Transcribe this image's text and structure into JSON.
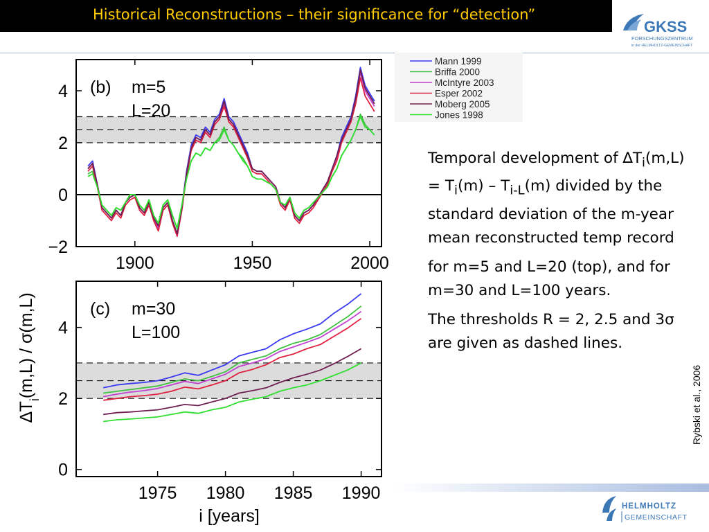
{
  "header": {
    "title": "Historical Reconstructions – their significance for “detection”"
  },
  "logos": {
    "gkss": {
      "name": "GKSS",
      "line1": "FORSCHUNGSZENTRUM",
      "line2": "in der HELMHOLTZ-GEMEINSCHAFT",
      "color": "#3d78b6"
    },
    "helmholtz": {
      "line1": "HELMHOLTZ",
      "line2": "GEMEINSCHAFT",
      "color": "#3d78b6"
    }
  },
  "description": {
    "p1_intro": "Temporal development of ",
    "p1_delta": "∆",
    "p1_T1": "T",
    "p1_sub_i1": "i",
    "p1_mid1": "(m,L) = T",
    "p1_sub_i2": "i",
    "p1_mid2": "(m) – T",
    "p1_sub_iL": "i-L",
    "p1_rest": "(m) divided by the standard deviation of the m-year mean reconstructed temp record",
    "p2": "for m=5 and L=20 (top), and for m=30 and L=100 years.",
    "p3": "The thresholds R = 2, 2.5 and 3σ are given as dashed lines."
  },
  "credit": "Rybski et al., 2006",
  "figure": {
    "ylabel_delta": "∆T",
    "ylabel_sub": "i",
    "ylabel_rest": "(m,L) / σ(m,L)",
    "xlabel": "i [years]"
  },
  "chart_data": [
    {
      "type": "line",
      "panel_label": "(b)",
      "params": [
        "m=5",
        "L=20"
      ],
      "xlim": [
        1875,
        2005
      ],
      "ylim": [
        -2.0,
        5.2
      ],
      "xticks": [
        1900,
        1950,
        2000
      ],
      "xtick_labels": [
        "1900",
        "1950",
        "2000"
      ],
      "yticks": [
        -2,
        0,
        2,
        4
      ],
      "ytick_labels": [
        "−2",
        "0",
        "2",
        "4"
      ],
      "thresholds": [
        2,
        2.5,
        3
      ],
      "zero_line": true,
      "base_x": [
        1880,
        1882,
        1884,
        1886,
        1888,
        1890,
        1892,
        1894,
        1896,
        1898,
        1900,
        1902,
        1904,
        1906,
        1908,
        1910,
        1912,
        1914,
        1916,
        1918,
        1920,
        1922,
        1924,
        1926,
        1928,
        1930,
        1932,
        1934,
        1936,
        1938,
        1940,
        1942,
        1944,
        1946,
        1948,
        1950,
        1952,
        1954,
        1956,
        1958,
        1960,
        1962,
        1964,
        1966,
        1968,
        1970,
        1972,
        1974,
        1976,
        1978,
        1980,
        1982,
        1984,
        1986,
        1988,
        1990,
        1992,
        1994,
        1996,
        1998,
        2000,
        2002
      ],
      "series": [
        {
          "name": "Mann 1999",
          "color": "#3a3af0",
          "values": [
            1.1,
            1.3,
            0.4,
            -0.5,
            -0.7,
            -0.9,
            -0.6,
            -0.8,
            -0.3,
            -0.1,
            0.0,
            -0.5,
            -0.7,
            -0.3,
            -0.9,
            -1.3,
            -0.5,
            -0.3,
            -1.0,
            -1.6,
            -0.5,
            0.9,
            1.9,
            2.3,
            2.2,
            2.6,
            2.4,
            2.9,
            3.1,
            3.7,
            3.0,
            2.8,
            2.4,
            2.0,
            1.6,
            1.0,
            0.9,
            0.9,
            0.7,
            0.5,
            0.3,
            -0.3,
            -0.5,
            -0.1,
            -0.8,
            -1.0,
            -0.7,
            -0.6,
            -0.4,
            -0.1,
            0.2,
            0.5,
            1.0,
            1.5,
            2.2,
            2.6,
            3.0,
            3.8,
            4.9,
            4.2,
            3.9,
            3.6
          ]
        },
        {
          "name": "Briffa 2000",
          "color": "#40c040",
          "values": [
            0.8,
            0.9,
            0.3,
            -0.4,
            -0.6,
            -0.8,
            -0.5,
            -0.6,
            -0.3,
            0.0,
            0.0,
            -0.4,
            -0.6,
            -0.2,
            -0.8,
            -1.1,
            -0.4,
            -0.2,
            -0.8,
            -1.3,
            -0.4,
            0.7,
            1.3,
            1.6,
            1.5,
            1.8,
            1.7,
            2.0,
            2.2,
            2.6,
            2.1,
            1.9,
            1.6,
            1.4,
            1.1,
            0.7,
            0.6,
            0.6,
            0.5,
            0.4,
            0.2,
            -0.3,
            -0.4,
            -0.1,
            -0.7,
            -0.9,
            -0.6,
            -0.5,
            -0.3,
            -0.1,
            0.1,
            0.3,
            0.7,
            1.0,
            1.5,
            1.8,
            2.1,
            2.5,
            3.1,
            2.7,
            2.5,
            2.3
          ]
        },
        {
          "name": "McIntyre 2003",
          "color": "#c040d0",
          "values": [
            1.0,
            1.2,
            0.4,
            -0.5,
            -0.7,
            -0.9,
            -0.6,
            -0.8,
            -0.3,
            -0.1,
            0.0,
            -0.5,
            -0.7,
            -0.3,
            -0.9,
            -1.3,
            -0.5,
            -0.3,
            -1.0,
            -1.5,
            -0.5,
            0.8,
            1.8,
            2.2,
            2.1,
            2.5,
            2.3,
            2.8,
            3.0,
            3.5,
            2.9,
            2.7,
            2.3,
            1.9,
            1.5,
            1.0,
            0.9,
            0.9,
            0.7,
            0.5,
            0.3,
            -0.3,
            -0.5,
            -0.1,
            -0.8,
            -1.0,
            -0.7,
            -0.6,
            -0.4,
            -0.1,
            0.2,
            0.5,
            1.0,
            1.4,
            2.1,
            2.5,
            2.9,
            3.7,
            4.7,
            4.0,
            3.7,
            3.4
          ]
        },
        {
          "name": "Esper 2002",
          "color": "#e02040",
          "values": [
            0.9,
            1.1,
            0.3,
            -0.6,
            -0.8,
            -1.0,
            -0.7,
            -0.9,
            -0.4,
            -0.2,
            -0.1,
            -0.6,
            -0.8,
            -0.4,
            -1.0,
            -1.4,
            -0.6,
            -0.4,
            -1.1,
            -1.6,
            -0.6,
            0.7,
            1.7,
            2.1,
            2.0,
            2.4,
            2.2,
            2.7,
            2.9,
            3.4,
            2.8,
            2.6,
            2.2,
            1.8,
            1.4,
            0.9,
            0.8,
            0.8,
            0.6,
            0.4,
            0.2,
            -0.4,
            -0.6,
            -0.2,
            -0.9,
            -1.1,
            -0.8,
            -0.7,
            -0.5,
            -0.2,
            0.1,
            0.4,
            0.9,
            1.3,
            2.0,
            2.4,
            2.8,
            3.5,
            4.5,
            3.8,
            3.5,
            3.2
          ]
        },
        {
          "name": "Moberg 2005",
          "color": "#702050",
          "values": [
            1.0,
            1.2,
            0.4,
            -0.5,
            -0.7,
            -0.9,
            -0.6,
            -0.8,
            -0.3,
            -0.1,
            0.0,
            -0.5,
            -0.7,
            -0.3,
            -0.9,
            -1.2,
            -0.5,
            -0.3,
            -1.0,
            -1.5,
            -0.5,
            0.8,
            1.8,
            2.2,
            2.1,
            2.5,
            2.3,
            2.8,
            3.0,
            3.6,
            2.9,
            2.7,
            2.3,
            1.9,
            1.5,
            1.0,
            0.9,
            0.9,
            0.7,
            0.5,
            0.3,
            -0.3,
            -0.5,
            -0.1,
            -0.8,
            -1.0,
            -0.7,
            -0.6,
            -0.4,
            -0.1,
            0.2,
            0.5,
            1.0,
            1.5,
            2.1,
            2.5,
            2.9,
            3.7,
            4.8,
            4.1,
            3.8,
            3.5
          ]
        },
        {
          "name": "Jones 1998",
          "color": "#30e030",
          "values": [
            0.7,
            0.8,
            0.3,
            -0.4,
            -0.6,
            -0.8,
            -0.5,
            -0.6,
            -0.3,
            0.0,
            0.0,
            -0.4,
            -0.6,
            -0.2,
            -0.8,
            -1.1,
            -0.4,
            -0.2,
            -0.8,
            -1.3,
            -0.4,
            0.6,
            1.3,
            1.6,
            1.5,
            1.8,
            1.7,
            2.0,
            2.1,
            2.5,
            2.1,
            1.9,
            1.6,
            1.3,
            1.1,
            0.7,
            0.6,
            0.6,
            0.5,
            0.4,
            0.2,
            -0.3,
            -0.4,
            -0.1,
            -0.7,
            -0.9,
            -0.6,
            -0.5,
            -0.3,
            -0.1,
            0.1,
            0.3,
            0.7,
            1.0,
            1.5,
            1.8,
            2.1,
            2.5,
            3.0,
            2.6,
            2.5,
            2.3
          ]
        }
      ]
    },
    {
      "type": "line",
      "panel_label": "(c)",
      "params": [
        "m=30",
        "L=100"
      ],
      "xlim": [
        1969,
        1991.5
      ],
      "ylim": [
        -0.2,
        5.3
      ],
      "xticks": [
        1975,
        1980,
        1985,
        1990
      ],
      "xtick_labels": [
        "1975",
        "1980",
        "1985",
        "1990"
      ],
      "yticks": [
        0,
        2,
        4
      ],
      "ytick_labels": [
        "0",
        "2",
        "4"
      ],
      "thresholds": [
        2,
        2.5,
        3
      ],
      "zero_line": false,
      "base_x": [
        1971,
        1972,
        1973,
        1974,
        1975,
        1976,
        1977,
        1978,
        1979,
        1980,
        1981,
        1982,
        1983,
        1984,
        1985,
        1986,
        1987,
        1988,
        1989,
        1990
      ],
      "series": [
        {
          "name": "Mann 1999",
          "color": "#3a3af0",
          "values": [
            2.3,
            2.38,
            2.42,
            2.45,
            2.5,
            2.6,
            2.72,
            2.65,
            2.8,
            2.95,
            3.2,
            3.3,
            3.4,
            3.65,
            3.82,
            3.95,
            4.1,
            4.4,
            4.65,
            4.95
          ]
        },
        {
          "name": "Briffa 2000",
          "color": "#40c040",
          "values": [
            2.15,
            2.2,
            2.25,
            2.3,
            2.35,
            2.45,
            2.55,
            2.5,
            2.62,
            2.75,
            3.0,
            3.1,
            3.2,
            3.4,
            3.55,
            3.65,
            3.8,
            4.05,
            4.3,
            4.6
          ]
        },
        {
          "name": "McIntyre 2003",
          "color": "#c040d0",
          "values": [
            2.05,
            2.12,
            2.18,
            2.22,
            2.28,
            2.38,
            2.48,
            2.42,
            2.55,
            2.68,
            2.9,
            3.0,
            3.12,
            3.32,
            3.45,
            3.58,
            3.72,
            3.95,
            4.18,
            4.45
          ]
        },
        {
          "name": "Esper 2002",
          "color": "#e02040",
          "values": [
            1.95,
            2.0,
            2.05,
            2.08,
            2.12,
            2.2,
            2.32,
            2.27,
            2.38,
            2.5,
            2.72,
            2.82,
            2.95,
            3.15,
            3.25,
            3.4,
            3.52,
            3.75,
            3.98,
            4.25
          ]
        },
        {
          "name": "Moberg 2005",
          "color": "#702050",
          "values": [
            1.55,
            1.6,
            1.62,
            1.65,
            1.68,
            1.75,
            1.83,
            1.8,
            1.9,
            2.0,
            2.15,
            2.22,
            2.3,
            2.45,
            2.58,
            2.68,
            2.8,
            2.98,
            3.18,
            3.4
          ]
        },
        {
          "name": "Jones 1998",
          "color": "#30e030",
          "values": [
            1.35,
            1.4,
            1.42,
            1.45,
            1.48,
            1.55,
            1.62,
            1.58,
            1.68,
            1.75,
            1.9,
            1.98,
            2.05,
            2.2,
            2.3,
            2.38,
            2.5,
            2.65,
            2.8,
            3.0
          ]
        }
      ]
    }
  ]
}
